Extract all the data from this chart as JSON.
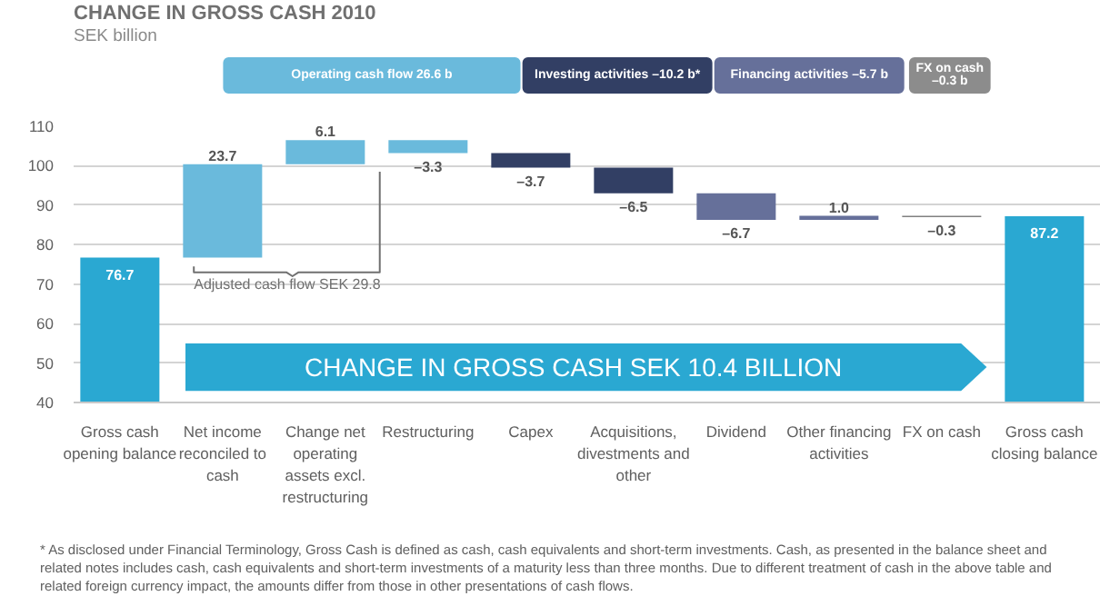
{
  "chart_data": {
    "type": "bar",
    "title": "CHANGE IN GROSS CASH 2010",
    "subtitle": "SEK billion",
    "categories": [
      "Gross cash opening balance",
      "Net income reconciled to cash",
      "Change net operating assets excl. restructuring",
      "Restructuring",
      "Capex",
      "Acquisitions, divestments and other",
      "Dividend",
      "Other financing activities",
      "FX on cash",
      "Gross cash closing balance"
    ],
    "values": [
      76.7,
      23.7,
      6.1,
      -3.3,
      -3.7,
      -6.5,
      -6.7,
      1.0,
      -0.3,
      87.2
    ],
    "base": [
      null,
      76.7,
      100.4,
      106.5,
      103.2,
      99.5,
      93.0,
      86.3,
      87.3,
      null
    ],
    "colors": [
      "#2aa8d2",
      "#6abadc",
      "#6abadc",
      "#6abadc",
      "#323f64",
      "#323f64",
      "#66709a",
      "#66709a",
      "#808080",
      "#2aa8d2"
    ],
    "value_labels": [
      "76.7",
      "23.7",
      "6.1",
      "–3.3",
      "–3.7",
      "–6.5",
      "–6.7",
      "1.0",
      "–0.3",
      "87.2"
    ],
    "ylim": [
      40,
      110
    ],
    "yticks": [
      40,
      50,
      60,
      70,
      80,
      90,
      100,
      110
    ],
    "grid": "y",
    "annotations": [
      "Operating cash flow 26.6 b",
      "Investing activities –10.2 b*",
      "Financing activities –5.7 b",
      "FX on cash –0.3 b",
      "Adjusted cash flow SEK 29.8",
      "CHANGE IN GROSS CASH SEK 10.4 BILLION",
      "* As disclosed under Financial Terminology, Gross Cash is defined as cash, cash equivalents and short-term investments. Cash, as presented in the balance sheet and related notes includes cash, cash equivalents and short-term investments of a maturity less than three months. Due to different treatment of cash in the above table and related foreign currency impact, the amounts differ from those in other presentations of cash flows."
    ]
  }
}
